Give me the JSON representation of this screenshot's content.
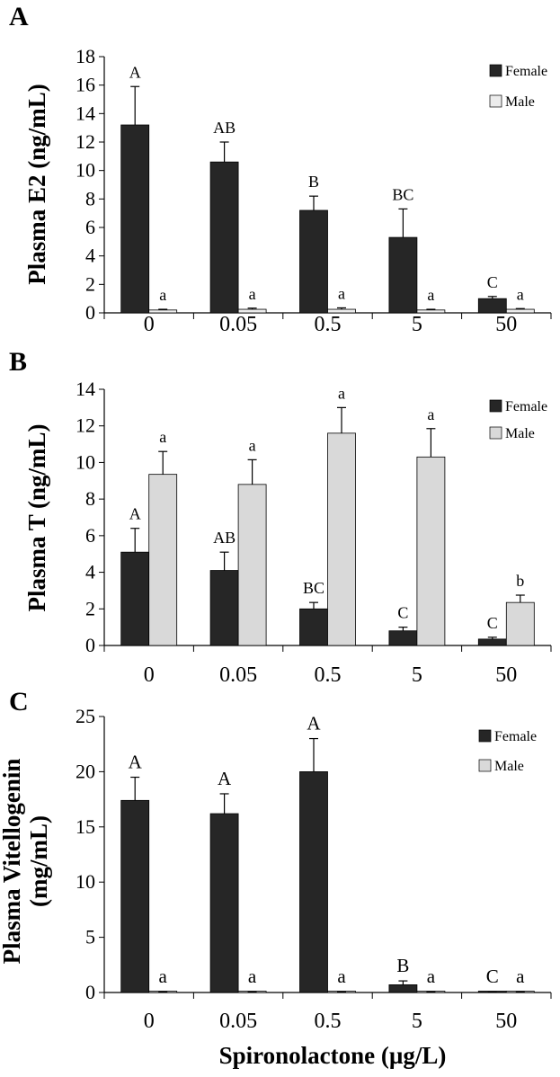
{
  "figure": {
    "shared_xlabel": "Spironolactone (µg/L)"
  },
  "chart_data": [
    {
      "type": "bar",
      "panel_label": "A",
      "ylabel": "Plasma E2 (ng/mL)",
      "xlabel": "",
      "categories": [
        "0",
        "0.05",
        "0.5",
        "5",
        "50"
      ],
      "ylim": [
        0,
        18
      ],
      "yticks": [
        0,
        2,
        4,
        6,
        8,
        10,
        12,
        14,
        16,
        18
      ],
      "legend_position": "top-right",
      "series": [
        {
          "name": "Female",
          "color": "#262626",
          "values": [
            13.2,
            10.6,
            7.2,
            5.3,
            1.0
          ],
          "errors": [
            2.7,
            1.4,
            1.0,
            2.0,
            0.15
          ],
          "labels": [
            "A",
            "AB",
            "B",
            "BC",
            "C"
          ]
        },
        {
          "name": "Male",
          "color": "#ececec",
          "values": [
            0.2,
            0.25,
            0.25,
            0.2,
            0.25
          ],
          "errors": [
            0.05,
            0.08,
            0.1,
            0.05,
            0.05
          ],
          "labels": [
            "a",
            "a",
            "a",
            "a",
            "a"
          ]
        }
      ]
    },
    {
      "type": "bar",
      "panel_label": "B",
      "ylabel": "Plasma T (ng/mL)",
      "xlabel": "",
      "categories": [
        "0",
        "0.05",
        "0.5",
        "5",
        "50"
      ],
      "ylim": [
        0,
        14
      ],
      "yticks": [
        0,
        2,
        4,
        6,
        8,
        10,
        12,
        14
      ],
      "legend_position": "top-right",
      "series": [
        {
          "name": "Female",
          "color": "#262626",
          "values": [
            5.1,
            4.1,
            2.0,
            0.8,
            0.35
          ],
          "errors": [
            1.3,
            1.0,
            0.35,
            0.2,
            0.1
          ],
          "labels": [
            "A",
            "AB",
            "BC",
            "C",
            "C"
          ]
        },
        {
          "name": "Male",
          "color": "#d9d9d9",
          "values": [
            9.35,
            8.8,
            11.6,
            10.3,
            2.35
          ],
          "errors": [
            1.25,
            1.35,
            1.4,
            1.55,
            0.4
          ],
          "labels": [
            "a",
            "a",
            "a",
            "a",
            "b"
          ]
        }
      ]
    },
    {
      "type": "bar",
      "panel_label": "C",
      "ylabel": "Plasma Vitellogenin (mg/mL)",
      "ylabel_lines": [
        "Plasma Vitellogenin",
        "(mg/mL)"
      ],
      "xlabel": "Spironolactone (µg/L)",
      "categories": [
        "0",
        "0.05",
        "0.5",
        "5",
        "50"
      ],
      "ylim": [
        0,
        25
      ],
      "yticks": [
        0,
        5,
        10,
        15,
        20,
        25
      ],
      "legend_position": "top-right",
      "series": [
        {
          "name": "Female",
          "color": "#262626",
          "values": [
            17.4,
            16.2,
            20.0,
            0.7,
            0.05
          ],
          "errors": [
            2.1,
            1.8,
            3.0,
            0.35,
            0.02
          ],
          "labels": [
            "A",
            "A",
            "A",
            "B",
            "C"
          ]
        },
        {
          "name": "Male",
          "color": "#d9d9d9",
          "values": [
            0.05,
            0.05,
            0.05,
            0.05,
            0.05
          ],
          "errors": [
            0.02,
            0.02,
            0.02,
            0.02,
            0.02
          ],
          "labels": [
            "a",
            "a",
            "a",
            "a",
            "a"
          ]
        }
      ]
    }
  ]
}
